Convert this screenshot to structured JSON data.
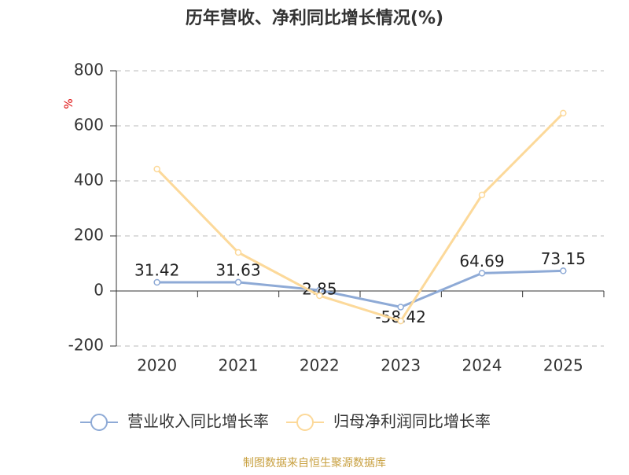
{
  "chart_data": {
    "type": "line",
    "title": "历年营收、净利同比增长情况(%)",
    "y_label": "%",
    "categories": [
      "2020",
      "2021",
      "2022",
      "2023",
      "2024",
      "2025"
    ],
    "series": [
      {
        "name": "营业收入同比增长率",
        "color": "#8eaad6",
        "values": [
          31.42,
          31.63,
          2.85,
          -58.42,
          64.69,
          73.15
        ],
        "show_labels": true
      },
      {
        "name": "归母净利润同比增长率",
        "color": "#fcd99a",
        "values": [
          443,
          140,
          -17,
          -109,
          349,
          646
        ],
        "show_labels": false
      }
    ],
    "ylim": [
      -200,
      800
    ],
    "yticks": [
      -200,
      0,
      200,
      400,
      600,
      800
    ],
    "grid": true,
    "legend": "bottom",
    "source": "制图数据来自恒生聚源数据库"
  }
}
